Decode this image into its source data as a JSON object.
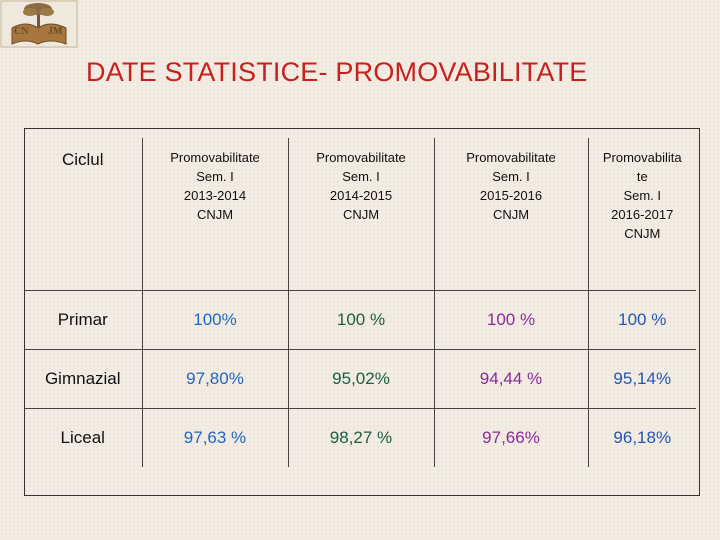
{
  "logo": {
    "left_text": "CN",
    "right_text": "JM"
  },
  "title": "DATE STATISTICE- PROMOVABILITATE",
  "table": {
    "header": [
      [
        "Ciclul"
      ],
      [
        "Promovabilitate",
        "Sem. I",
        "2013-2014",
        "CNJM"
      ],
      [
        "Promovabilitate",
        "Sem. I",
        "2014-2015",
        "CNJM"
      ],
      [
        "Promovabilitate",
        "Sem. I",
        "2015-2016",
        "CNJM"
      ],
      [
        "Promovabilita",
        "te",
        "Sem. I",
        "2016-2017",
        "CNJM"
      ]
    ],
    "rows": [
      {
        "cycle": "Primar",
        "values": [
          "100%",
          "100 %",
          "100 %",
          "100 %"
        ]
      },
      {
        "cycle": "Gimnazial",
        "values": [
          "97,80%",
          "95,02%",
          "94,44 %",
          "95,14%"
        ]
      },
      {
        "cycle": "Liceal",
        "values": [
          "97,63 %",
          "98,27 %",
          "97,66%",
          "96,18%"
        ]
      }
    ],
    "column_colors": [
      "#1f67c4",
      "#1a5f42",
      "#8a2a9e",
      "#2456b4"
    ]
  }
}
